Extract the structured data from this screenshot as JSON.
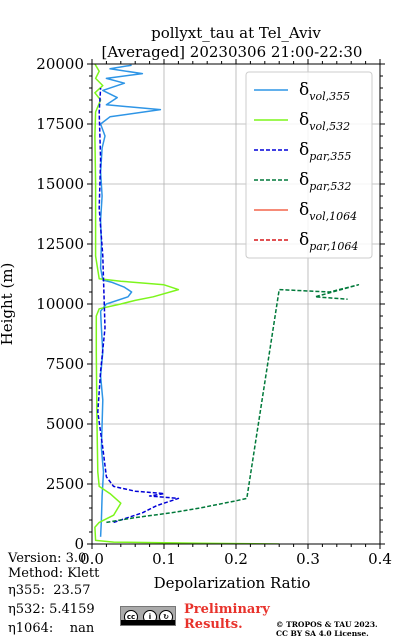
{
  "title": {
    "line1": "pollyxt_tau at Tel_Aviv",
    "line2": "[Averaged] 20230306 21:00-22:30"
  },
  "chart_data": {
    "type": "line",
    "xlabel": "Depolarization Ratio",
    "ylabel": "Height (m)",
    "xlim": [
      0.0,
      0.4
    ],
    "ylim": [
      0,
      20000
    ],
    "xticks": [
      "0.0",
      "0.1",
      "0.2",
      "0.3",
      "0.4"
    ],
    "xtick_values": [
      0.0,
      0.1,
      0.2,
      0.3,
      0.4
    ],
    "yticks": [
      "0",
      "2500",
      "5000",
      "7500",
      "10000",
      "12500",
      "15000",
      "17500",
      "20000"
    ],
    "ytick_values": [
      0,
      2500,
      5000,
      7500,
      10000,
      12500,
      15000,
      17500,
      20000
    ],
    "grid": true,
    "legend_position": "top-right",
    "series": [
      {
        "name": "δ_vol,355",
        "main": "δ",
        "sub": "vol,355",
        "color": "#2e95e6",
        "dash": "solid",
        "points": [
          [
            0.012,
            300
          ],
          [
            0.013,
            1000
          ],
          [
            0.014,
            2000
          ],
          [
            0.016,
            3000
          ],
          [
            0.013,
            4000
          ],
          [
            0.014,
            5000
          ],
          [
            0.015,
            6000
          ],
          [
            0.012,
            7000
          ],
          [
            0.015,
            8000
          ],
          [
            0.013,
            9000
          ],
          [
            0.012,
            9700
          ],
          [
            0.02,
            10000
          ],
          [
            0.05,
            10300
          ],
          [
            0.055,
            10500
          ],
          [
            0.045,
            10700
          ],
          [
            0.028,
            10900
          ],
          [
            0.015,
            11000
          ],
          [
            0.012,
            11500
          ],
          [
            0.013,
            12500
          ],
          [
            0.012,
            13500
          ],
          [
            0.014,
            14500
          ],
          [
            0.012,
            15500
          ],
          [
            0.014,
            16500
          ],
          [
            0.018,
            17000
          ],
          [
            0.012,
            17500
          ],
          [
            0.025,
            17800
          ],
          [
            0.095,
            18100
          ],
          [
            0.02,
            18300
          ],
          [
            0.035,
            18600
          ],
          [
            0.015,
            18900
          ],
          [
            0.045,
            19200
          ],
          [
            0.02,
            19400
          ],
          [
            0.07,
            19600
          ],
          [
            0.025,
            19800
          ],
          [
            0.055,
            19950
          ]
        ]
      },
      {
        "name": "δ_vol,532",
        "main": "δ",
        "sub": "vol,532",
        "color": "#7df51c",
        "dash": "solid",
        "points": [
          [
            0.26,
            0
          ],
          [
            0.15,
            30
          ],
          [
            0.03,
            80
          ],
          [
            0.005,
            150
          ],
          [
            0.004,
            700
          ],
          [
            0.01,
            900
          ],
          [
            0.03,
            1200
          ],
          [
            0.04,
            1700
          ],
          [
            0.025,
            2100
          ],
          [
            0.01,
            2400
          ],
          [
            0.008,
            3000
          ],
          [
            0.007,
            5000
          ],
          [
            0.006,
            8000
          ],
          [
            0.006,
            9500
          ],
          [
            0.01,
            9800
          ],
          [
            0.04,
            10000
          ],
          [
            0.06,
            10150
          ],
          [
            0.085,
            10300
          ],
          [
            0.12,
            10600
          ],
          [
            0.1,
            10800
          ],
          [
            0.04,
            10950
          ],
          [
            0.01,
            11050
          ],
          [
            0.005,
            12000
          ],
          [
            0.005,
            15000
          ],
          [
            0.004,
            17000
          ],
          [
            0.005,
            18000
          ],
          [
            0.012,
            18500
          ],
          [
            0.004,
            18800
          ],
          [
            0.015,
            19100
          ],
          [
            0.005,
            19400
          ],
          [
            0.01,
            19700
          ],
          [
            0.004,
            20000
          ]
        ]
      },
      {
        "name": "δ_par,355",
        "main": "δ",
        "sub": "par,355",
        "color": "#0000d8",
        "dash": "dashed",
        "points": [
          [
            0.03,
            900
          ],
          [
            0.05,
            1100
          ],
          [
            0.07,
            1300
          ],
          [
            0.09,
            1600
          ],
          [
            0.12,
            1900
          ],
          [
            0.08,
            2000
          ],
          [
            0.1,
            2100
          ],
          [
            0.06,
            2200
          ],
          [
            0.03,
            2400
          ],
          [
            0.02,
            2800
          ],
          [
            0.015,
            4000
          ],
          [
            0.008,
            5500
          ],
          [
            0.012,
            7200
          ],
          [
            0.018,
            9000
          ],
          [
            0.015,
            12000
          ],
          [
            0.01,
            14000
          ],
          [
            0.012,
            16000
          ],
          [
            0.01,
            18000
          ],
          [
            0.012,
            19000
          ]
        ]
      },
      {
        "name": "δ_par,532",
        "main": "δ",
        "sub": "par,532",
        "color": "#00793a",
        "dash": "dashed",
        "points": [
          [
            0.02,
            900
          ],
          [
            0.06,
            1100
          ],
          [
            0.11,
            1300
          ],
          [
            0.15,
            1500
          ],
          [
            0.2,
            1800
          ],
          [
            0.215,
            1900
          ],
          [
            0.26,
            10600
          ],
          [
            0.33,
            10500
          ],
          [
            0.37,
            10800
          ],
          [
            0.31,
            10300
          ],
          [
            0.355,
            10200
          ]
        ]
      },
      {
        "name": "δ_vol,1064",
        "main": "δ",
        "sub": "vol,1064",
        "color": "#f3654c",
        "dash": "solid",
        "points": []
      },
      {
        "name": "δ_par,1064",
        "main": "δ",
        "sub": "par,1064",
        "color": "#d7191c",
        "dash": "dashed",
        "points": []
      }
    ]
  },
  "info": {
    "version_label": "Version:",
    "version_value": "3.0",
    "method_label": "Method:",
    "method_value": "Klett",
    "eta355_label": "η355:",
    "eta355_value": "23.57",
    "eta532_label": "η532:",
    "eta532_value": "5.4159",
    "eta1064_label": "η1064:",
    "eta1064_value": "nan"
  },
  "preliminary": {
    "line1": "Preliminary",
    "line2": "Results."
  },
  "credit": {
    "line1": "© TROPOS & TAU 2023.",
    "line2": "CC BY SA 4.0 License."
  },
  "license_badge": {
    "text": "cc",
    "icons": [
      "cc-icon",
      "by-icon",
      "sa-icon"
    ]
  }
}
